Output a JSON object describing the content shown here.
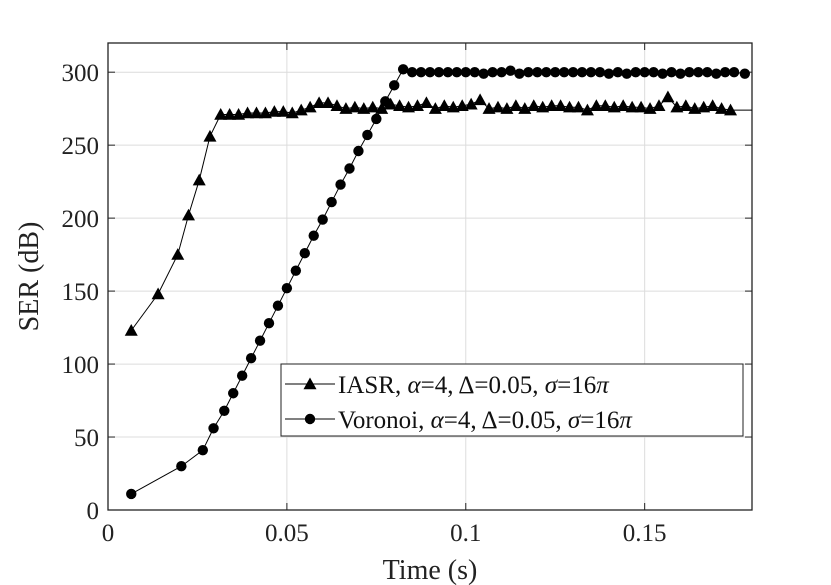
{
  "chart_data": {
    "type": "line",
    "title": "",
    "xlabel": "Time (s)",
    "ylabel": "SER (dB)",
    "xlim": [
      0,
      0.18
    ],
    "ylim": [
      0,
      320
    ],
    "grid": true,
    "legend_position": "lower-right",
    "xticks": [
      0,
      0.05,
      0.1,
      0.15
    ],
    "xtick_labels": [
      "0",
      "0.05",
      "0.1",
      "0.15"
    ],
    "yticks": [
      0,
      50,
      100,
      150,
      200,
      250,
      300
    ],
    "ytick_labels": [
      "0",
      "50",
      "100",
      "150",
      "200",
      "250",
      "300"
    ],
    "series": [
      {
        "name": "IASR, α=4, Δ=0.05, σ=16π",
        "legend_prefix": "IASR, ",
        "marker": "triangle",
        "color": "#000000",
        "x": [
          0.0065,
          0.014,
          0.0195,
          0.0225,
          0.0255,
          0.0285,
          0.0315,
          0.034,
          0.0365,
          0.039,
          0.0415,
          0.044,
          0.0465,
          0.049,
          0.0515,
          0.054,
          0.0565,
          0.059,
          0.0615,
          0.064,
          0.0665,
          0.069,
          0.0715,
          0.074,
          0.0765,
          0.079,
          0.0815,
          0.084,
          0.0865,
          0.089,
          0.0915,
          0.094,
          0.0965,
          0.099,
          0.1015,
          0.104,
          0.1065,
          0.109,
          0.1115,
          0.114,
          0.1165,
          0.119,
          0.1215,
          0.124,
          0.1265,
          0.129,
          0.1315,
          0.134,
          0.1365,
          0.139,
          0.1415,
          0.144,
          0.1465,
          0.149,
          0.1515,
          0.154,
          0.1565,
          0.159,
          0.1615,
          0.164,
          0.1665,
          0.169,
          0.1715,
          0.174
        ],
        "y": [
          123,
          148,
          175,
          202,
          226,
          256,
          271,
          271,
          271,
          272,
          272,
          272,
          273,
          273,
          272,
          274,
          276,
          279,
          279,
          277,
          275,
          276,
          275,
          276,
          275,
          278,
          277,
          276,
          277,
          279,
          275,
          277,
          276,
          277,
          278,
          281,
          275,
          276,
          275,
          277,
          275,
          277,
          276,
          277,
          277,
          276,
          276,
          274,
          277,
          277,
          276,
          277,
          276,
          276,
          275,
          277,
          283,
          276,
          277,
          275,
          276,
          277,
          275,
          274
        ],
        "tail_y": 274
      },
      {
        "name": "Voronoi, α=4, Δ=0.05, σ=16π",
        "legend_prefix": "Voronoi, ",
        "marker": "circle",
        "color": "#000000",
        "x": [
          0.0065,
          0.0205,
          0.0265,
          0.0295,
          0.0325,
          0.035,
          0.0375,
          0.04,
          0.0425,
          0.045,
          0.0475,
          0.05,
          0.0525,
          0.055,
          0.0575,
          0.06,
          0.0625,
          0.065,
          0.0675,
          0.07,
          0.0725,
          0.075,
          0.0775,
          0.08,
          0.0825,
          0.085,
          0.0875,
          0.09,
          0.0925,
          0.095,
          0.0975,
          0.1,
          0.1025,
          0.105,
          0.1075,
          0.11,
          0.1125,
          0.115,
          0.1175,
          0.12,
          0.1225,
          0.125,
          0.1275,
          0.13,
          0.1325,
          0.135,
          0.1375,
          0.14,
          0.1425,
          0.145,
          0.1475,
          0.15,
          0.1525,
          0.155,
          0.1575,
          0.16,
          0.1625,
          0.165,
          0.1675,
          0.17,
          0.1725,
          0.175,
          0.178
        ],
        "y": [
          11,
          30,
          41,
          56,
          68,
          80,
          92,
          104,
          116,
          128,
          140,
          152,
          164,
          176,
          188,
          199,
          211,
          223,
          234,
          246,
          257,
          268,
          280,
          291,
          302,
          300,
          300,
          300,
          300,
          300,
          300,
          300,
          300,
          299,
          300,
          300,
          301,
          299,
          300,
          300,
          300,
          300,
          300,
          300,
          300,
          300,
          300,
          299,
          300,
          299,
          300,
          300,
          300,
          299,
          300,
          299,
          300,
          300,
          300,
          299,
          300,
          300,
          299
        ]
      }
    ],
    "legend_param": {
      "alpha": "α",
      "alpha_val": "=4, ",
      "delta": "Δ",
      "delta_val": "=0.05, ",
      "sigma": "σ",
      "sigma_val": "=16",
      "pi": "π"
    }
  }
}
